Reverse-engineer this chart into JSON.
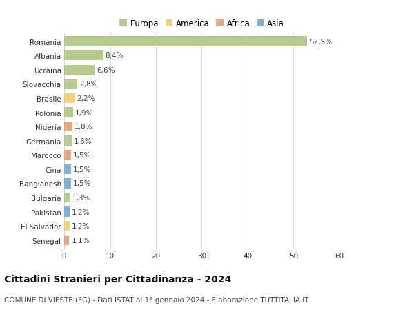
{
  "countries": [
    "Romania",
    "Albania",
    "Ucraina",
    "Slovacchia",
    "Brasile",
    "Polonia",
    "Nigeria",
    "Germania",
    "Marocco",
    "Cina",
    "Bangladesh",
    "Bulgaria",
    "Pakistan",
    "El Salvador",
    "Senegal"
  ],
  "values": [
    52.9,
    8.4,
    6.6,
    2.8,
    2.2,
    1.9,
    1.8,
    1.6,
    1.5,
    1.5,
    1.5,
    1.3,
    1.2,
    1.2,
    1.1
  ],
  "labels": [
    "52,9%",
    "8,4%",
    "6,6%",
    "2,8%",
    "2,2%",
    "1,9%",
    "1,8%",
    "1,6%",
    "1,5%",
    "1,5%",
    "1,5%",
    "1,3%",
    "1,2%",
    "1,2%",
    "1,1%"
  ],
  "continents": [
    "Europa",
    "Europa",
    "Europa",
    "Europa",
    "America",
    "Europa",
    "Africa",
    "Europa",
    "Africa",
    "Asia",
    "Asia",
    "Europa",
    "Asia",
    "America",
    "Africa"
  ],
  "continent_colors": {
    "Europa": "#b5cc8e",
    "America": "#f5d07a",
    "Africa": "#e8a87c",
    "Asia": "#7eb3d4"
  },
  "legend_order": [
    "Europa",
    "America",
    "Africa",
    "Asia"
  ],
  "xlim": [
    0,
    60
  ],
  "xticks": [
    0,
    10,
    20,
    30,
    40,
    50,
    60
  ],
  "title": "Cittadini Stranieri per Cittadinanza - 2024",
  "subtitle": "COMUNE DI VIESTE (FG) - Dati ISTAT al 1° gennaio 2024 - Elaborazione TUTTITALIA.IT",
  "background_color": "#ffffff",
  "grid_color": "#dddddd",
  "bar_height": 0.7,
  "title_fontsize": 10,
  "subtitle_fontsize": 7.5,
  "label_fontsize": 7.5,
  "legend_fontsize": 8.5,
  "tick_fontsize": 7.5
}
